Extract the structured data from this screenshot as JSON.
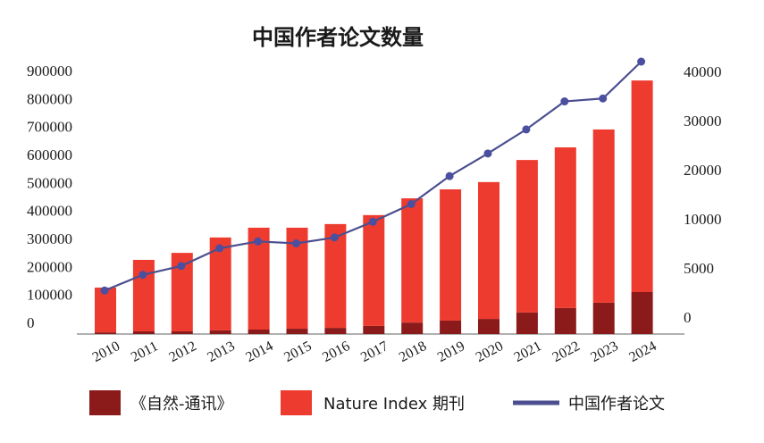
{
  "chart_data": {
    "type": "bar",
    "title": "中国作者论文数量",
    "xlabel": "",
    "ylabel": "",
    "categories": [
      "2010",
      "2011",
      "2012",
      "2013",
      "2014",
      "2015",
      "2016",
      "2017",
      "2018",
      "2019",
      "2020",
      "2021",
      "2022",
      "2023",
      "2024"
    ],
    "series": [
      {
        "name": "《自然-通讯》",
        "kind": "bar",
        "stack": "total",
        "axis": "left",
        "color": "#8b1a1a",
        "values": [
          6000,
          9600,
          9600,
          13000,
          16000,
          19000,
          22000,
          29000,
          41000,
          48000,
          54000,
          77000,
          93000,
          112000,
          150000
        ]
      },
      {
        "name": "Nature Index 期刊",
        "kind": "bar",
        "stack": "total",
        "axis": "left",
        "color": "#ee3b2f",
        "values": [
          160000,
          255400,
          280400,
          332000,
          364000,
          361000,
          371000,
          396000,
          444000,
          469000,
          489000,
          545000,
          574000,
          619000,
          756000
        ]
      },
      {
        "name": "中国作者论文",
        "kind": "line",
        "axis": "right",
        "color": "#4b4f8f",
        "values": [
          2700,
          4300,
          5200,
          7000,
          7700,
          7500,
          8100,
          9700,
          13000,
          18700,
          23300,
          28200,
          33900,
          34500,
          42000
        ]
      }
    ],
    "left_axis": {
      "ylim": [
        0,
        900000
      ],
      "ticks": [
        "900000",
        "800000",
        "700000",
        "600000",
        "500000",
        "400000",
        "300000",
        "200000",
        "100000",
        "0"
      ]
    },
    "right_axis": {
      "ticks": [
        "40000",
        "30000",
        "20000",
        "10000",
        "5000",
        "0"
      ],
      "tick_values": [
        40000,
        30000,
        20000,
        10000,
        5000,
        0
      ],
      "scale": "piecewise-even-ticks"
    },
    "grid": false,
    "legend_position": "bottom"
  }
}
